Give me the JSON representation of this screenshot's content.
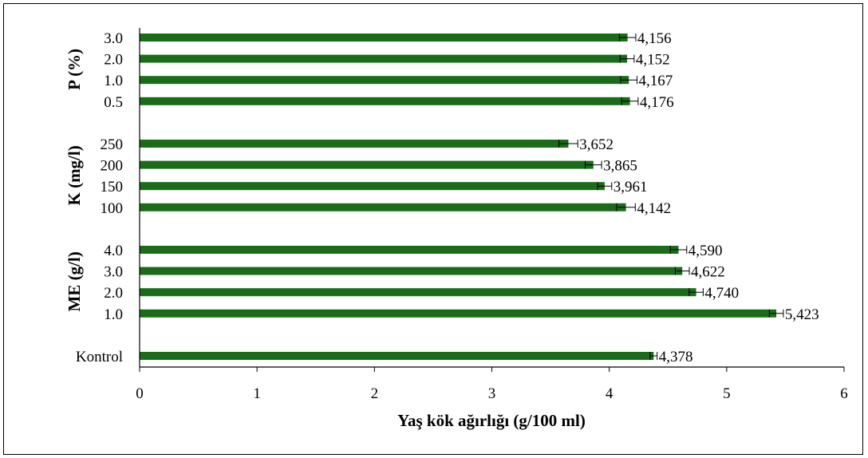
{
  "chart_data": {
    "type": "bar",
    "orientation": "horizontal",
    "xlabel": "Yaş kök ağırlığı (g/100 ml)",
    "xlim": [
      0,
      6
    ],
    "xticks": [
      "0",
      "1",
      "2",
      "3",
      "4",
      "5",
      "6"
    ],
    "grid": false,
    "legend": "none",
    "bar_color": "#1a6b1a",
    "groups": [
      {
        "name": "P (%)",
        "categories": [
          "3.0",
          "2.0",
          "1.0",
          "0.5"
        ],
        "values": [
          4.156,
          4.152,
          4.167,
          4.176
        ],
        "labels": [
          "4,156",
          "4,152",
          "4,167",
          "4,176"
        ],
        "error": [
          0.07,
          0.06,
          0.07,
          0.07
        ]
      },
      {
        "name": "K (mg/l)",
        "categories": [
          "250",
          "200",
          "150",
          "100"
        ],
        "values": [
          3.652,
          3.865,
          3.961,
          4.142
        ],
        "labels": [
          "3,652",
          "3,865",
          "3,961",
          "4,142"
        ],
        "error": [
          0.08,
          0.07,
          0.06,
          0.08
        ]
      },
      {
        "name": "ME (g/l)",
        "categories": [
          "4.0",
          "3.0",
          "2.0",
          "1.0"
        ],
        "values": [
          4.59,
          4.622,
          4.74,
          5.423
        ],
        "labels": [
          "4,590",
          "4,622",
          "4,740",
          "5,423"
        ],
        "error": [
          0.07,
          0.06,
          0.06,
          0.06
        ]
      },
      {
        "name": "",
        "categories": [
          "Kontrol"
        ],
        "values": [
          4.378
        ],
        "labels": [
          "4,378"
        ],
        "error": [
          0.03
        ]
      }
    ]
  }
}
